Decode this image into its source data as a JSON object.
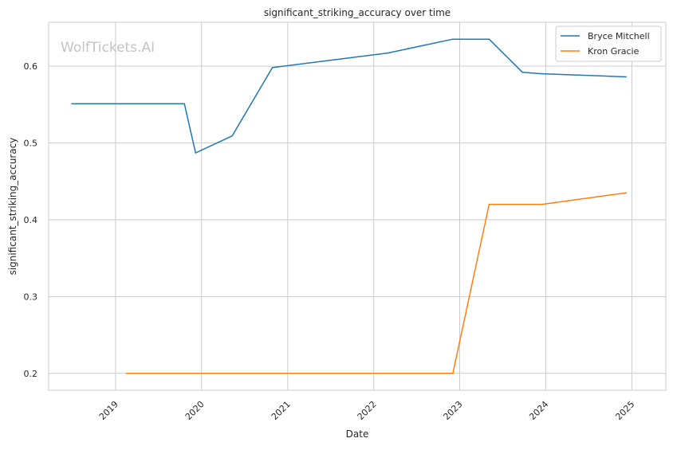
{
  "chart_data": {
    "type": "line",
    "title": "significant_striking_accuracy over time",
    "xlabel": "Date",
    "ylabel": "significant_striking_accuracy",
    "watermark": "WolfTickets.AI",
    "xlim": [
      "2018-03-23",
      "2025-05-25"
    ],
    "ylim": [
      0.178,
      0.657
    ],
    "x_ticks": [
      "2019-01-01",
      "2020-01-01",
      "2021-01-01",
      "2022-01-01",
      "2023-01-01",
      "2024-01-01",
      "2025-01-01"
    ],
    "x_tick_labels": [
      "2019",
      "2020",
      "2021",
      "2022",
      "2023",
      "2024",
      "2025"
    ],
    "y_ticks": [
      0.2,
      0.3,
      0.4,
      0.5,
      0.6
    ],
    "y_tick_labels": [
      "0.2",
      "0.3",
      "0.4",
      "0.5",
      "0.6"
    ],
    "grid": true,
    "legend_position": "top-right",
    "series": [
      {
        "name": "Bryce Mitchell",
        "color": "#1f77b4",
        "x": [
          "2018-06-30",
          "2019-10-20",
          "2019-12-07",
          "2020-05-10",
          "2020-10-28",
          "2022-03-01",
          "2022-12-03",
          "2023-05-06",
          "2023-09-24",
          "2023-12-16",
          "2024-12-07"
        ],
        "y": [
          0.551,
          0.551,
          0.487,
          0.509,
          0.598,
          0.617,
          0.635,
          0.635,
          0.592,
          0.59,
          0.586
        ]
      },
      {
        "name": "Kron Gracie",
        "color": "#ff7f0e",
        "x": [
          "2019-02-17",
          "2022-12-03",
          "2023-05-06",
          "2023-12-16",
          "2024-12-07"
        ],
        "y": [
          0.2,
          0.2,
          0.42,
          0.42,
          0.435
        ]
      }
    ]
  }
}
